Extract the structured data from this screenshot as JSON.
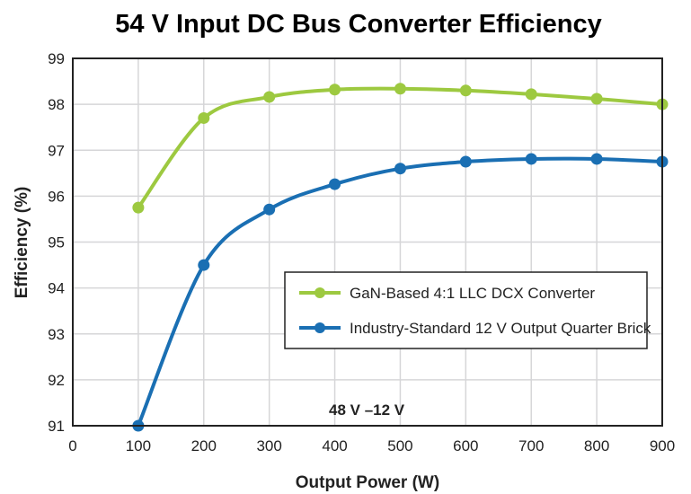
{
  "chart_data": {
    "type": "line",
    "title": "54 V Input DC Bus Converter Efficiency",
    "xlabel": "Output Power (W)",
    "ylabel": "Efficiency (%)",
    "xlim": [
      0,
      900
    ],
    "ylim": [
      91,
      99
    ],
    "xticks": [
      0,
      100,
      200,
      300,
      400,
      500,
      600,
      700,
      800,
      900
    ],
    "yticks": [
      91,
      92,
      93,
      94,
      95,
      96,
      97,
      98,
      99
    ],
    "grid": true,
    "legend_position": "center-right",
    "x": [
      100,
      200,
      300,
      400,
      500,
      600,
      700,
      800,
      900
    ],
    "series": [
      {
        "name": "GaN-Based 4:1 LLC DCX Converter",
        "color": "#9dc940",
        "values": [
          95.75,
          97.7,
          98.16,
          98.32,
          98.34,
          98.3,
          98.22,
          98.12,
          98.0
        ]
      },
      {
        "name": "Industry-Standard 12 V Output Quarter Brick",
        "color": "#1a6fb3",
        "values": [
          91.0,
          94.5,
          95.71,
          96.26,
          96.6,
          96.75,
          96.81,
          96.81,
          96.75
        ]
      }
    ],
    "annotation": "48 V –12 V"
  }
}
